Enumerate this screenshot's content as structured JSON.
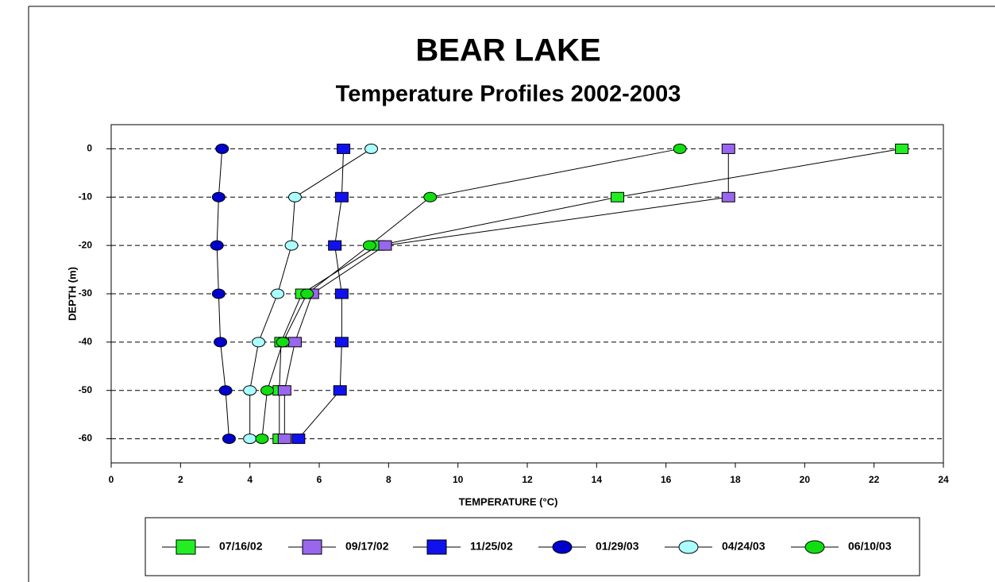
{
  "chart_data": {
    "type": "line",
    "title": "BEAR LAKE",
    "subtitle": "Temperature Profiles 2002-2003",
    "x_label": "TEMPERATURE (°C)",
    "y_label": "DEPTH (m)",
    "xlim": [
      0,
      24
    ],
    "xticks": [
      0,
      2,
      4,
      6,
      8,
      10,
      12,
      14,
      16,
      18,
      20,
      22,
      24
    ],
    "ylim": [
      -65,
      5
    ],
    "yticks": [
      0,
      -10,
      -20,
      -30,
      -40,
      -50,
      -60
    ],
    "grid": "dashed-horizontal",
    "legend": "bottom",
    "y": [
      0,
      -10,
      -20,
      -30,
      -40,
      -50,
      -60
    ],
    "series": [
      {
        "name": "07/16/02",
        "color": "#22ee22",
        "marker": "square",
        "x": [
          22.8,
          14.6,
          7.7,
          5.5,
          4.9,
          4.85,
          4.85
        ]
      },
      {
        "name": "09/17/02",
        "color": "#9966ee",
        "marker": "square",
        "x": [
          17.8,
          17.8,
          7.9,
          5.8,
          5.3,
          5.0,
          5.0
        ]
      },
      {
        "name": "11/25/02",
        "color": "#1111ee",
        "marker": "square",
        "x": [
          6.7,
          6.65,
          6.45,
          6.65,
          6.65,
          6.6,
          5.4
        ]
      },
      {
        "name": "01/29/03",
        "color": "#0000cc",
        "marker": "ellipse",
        "x": [
          3.2,
          3.1,
          3.05,
          3.1,
          3.15,
          3.3,
          3.4
        ]
      },
      {
        "name": "04/24/03",
        "color": "#aaffff",
        "marker": "ellipse",
        "x": [
          7.5,
          5.3,
          5.2,
          4.8,
          4.25,
          4.0,
          4.0
        ]
      },
      {
        "name": "06/10/03",
        "color": "#11dd11",
        "marker": "ellipse",
        "x": [
          16.4,
          9.2,
          7.45,
          5.65,
          4.95,
          4.5,
          4.35
        ]
      }
    ]
  }
}
